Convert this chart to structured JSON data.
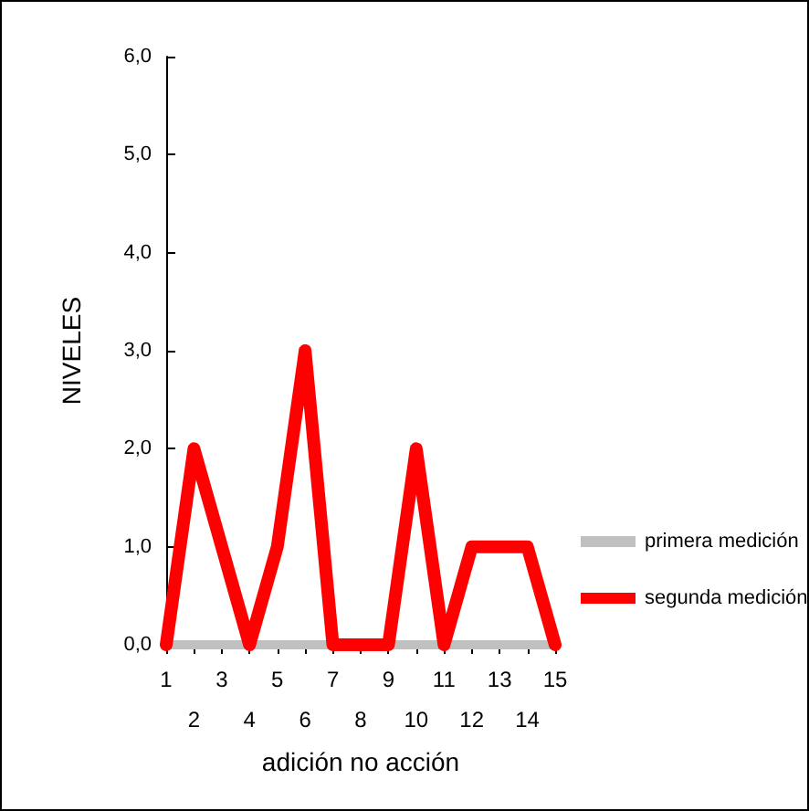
{
  "chart_data": {
    "type": "line",
    "xlabel": "adición no acción",
    "ylabel": "NIVELES",
    "categories": [
      "1",
      "2",
      "3",
      "4",
      "5",
      "6",
      "7",
      "8",
      "9",
      "10",
      "11",
      "12",
      "13",
      "14",
      "15"
    ],
    "series": [
      {
        "name": "primera medición",
        "color": "#c0c0c0",
        "values": [
          0,
          0,
          0,
          0,
          0,
          0,
          0,
          0,
          0,
          0,
          0,
          0,
          0,
          0,
          0
        ]
      },
      {
        "name": "segunda medición",
        "color": "#ff0000",
        "values": [
          0,
          2,
          1,
          0,
          1,
          3,
          0,
          0,
          0,
          2,
          0,
          1,
          1,
          1,
          0
        ]
      }
    ],
    "ylim": [
      0,
      6
    ],
    "yticks": [
      {
        "value": 0,
        "label": "0,0"
      },
      {
        "value": 1,
        "label": "1,0"
      },
      {
        "value": 2,
        "label": "2,0"
      },
      {
        "value": 3,
        "label": "3,0"
      },
      {
        "value": 4,
        "label": "4,0"
      },
      {
        "value": 5,
        "label": "5,0"
      },
      {
        "value": 6,
        "label": "6,0"
      }
    ],
    "grid": false,
    "legend": "right",
    "marker": "none",
    "line_style": "solid"
  }
}
